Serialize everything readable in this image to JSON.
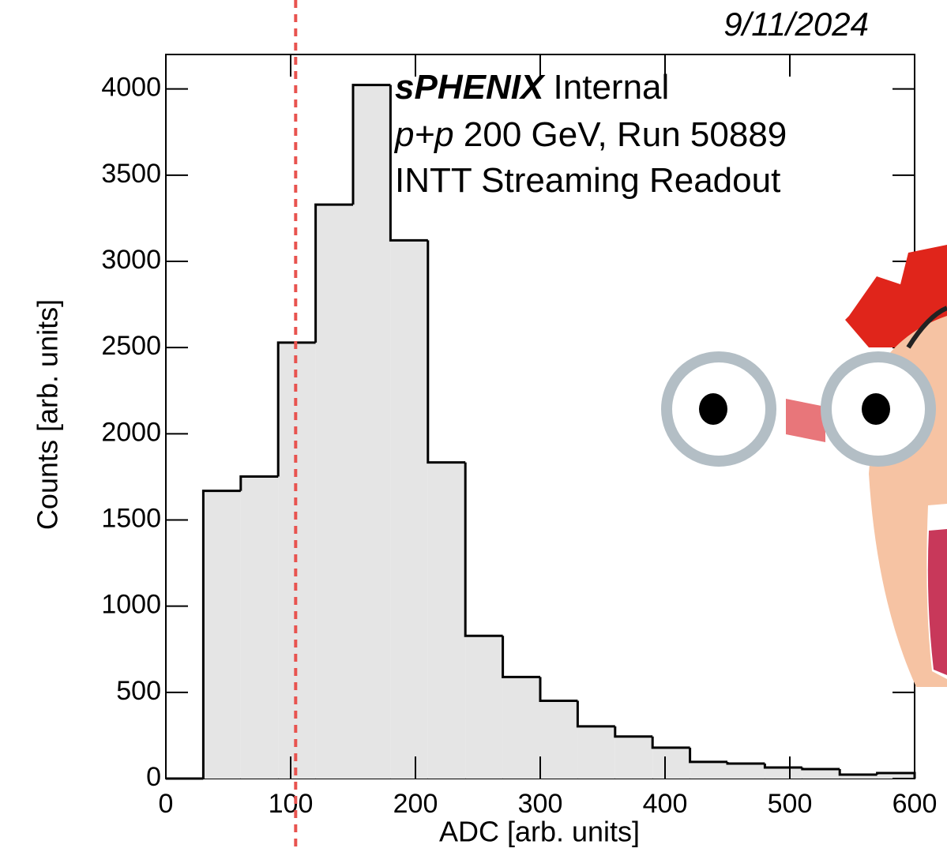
{
  "chart_data": {
    "type": "histogram",
    "date": "9/11/2024",
    "annotations": [
      "sPHENIX",
      "Internal",
      "p+p",
      "200 GeV, Run 50889",
      "INTT Streaming Readout"
    ],
    "xlabel": "ADC [arb. units]",
    "ylabel": "Counts [arb. units]",
    "bins": [
      0,
      30,
      60,
      90,
      120,
      150,
      180,
      210,
      240,
      270,
      300,
      330,
      360,
      390,
      420,
      450,
      480,
      510,
      540,
      570,
      600
    ],
    "values": [
      0,
      1669,
      1752,
      2529,
      3329,
      4023,
      3122,
      1834,
      828,
      589,
      451,
      303,
      244,
      179,
      97,
      87,
      64,
      55,
      23,
      32
    ],
    "color": "#e5e5e5",
    "edge_color": "#000000",
    "vline": {
      "value": 104,
      "color": "#e8534f"
    },
    "xlim": [
      0,
      600
    ],
    "xticks": [
      0,
      100,
      200,
      300,
      400,
      500,
      600
    ],
    "ylim": [
      0,
      4200
    ],
    "yticks": [
      0,
      500,
      1000,
      1500,
      2000,
      2500,
      3000,
      3500,
      4000
    ]
  }
}
